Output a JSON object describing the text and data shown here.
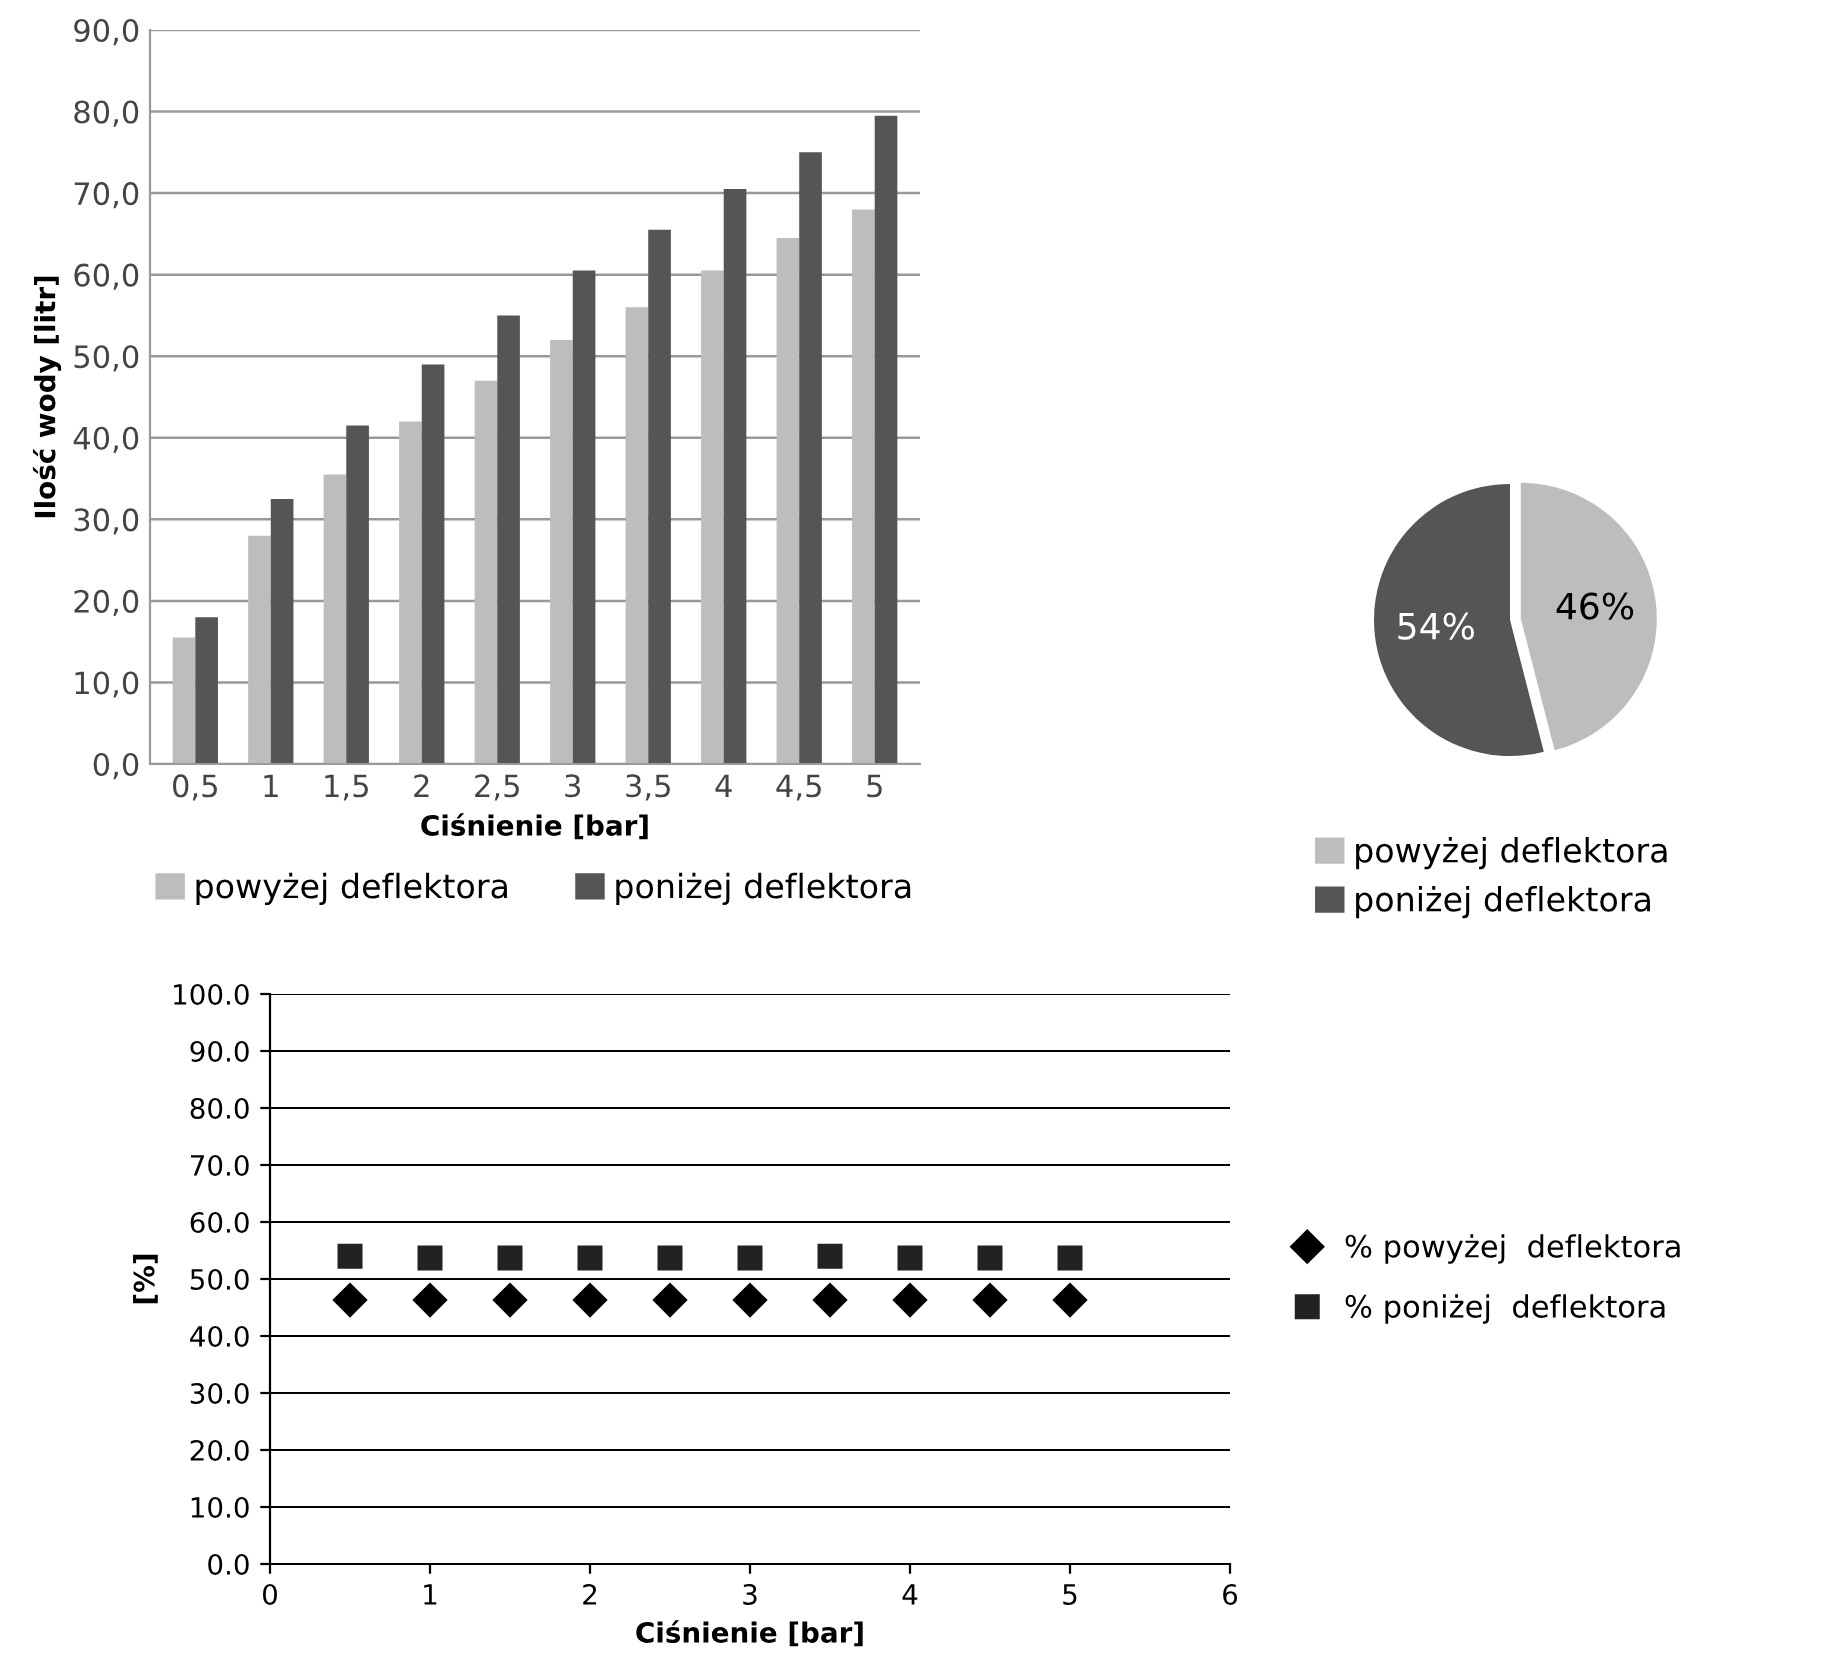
{
  "chart_data": [
    {
      "type": "bar",
      "xlabel": "Ciśnienie [bar]",
      "ylabel": "Ilość wody [litr]",
      "categories": [
        "0,5",
        "1",
        "1,5",
        "2",
        "2,5",
        "3",
        "3,5",
        "4",
        "4,5",
        "5"
      ],
      "series": [
        {
          "name": "powyżej deflektora",
          "color": "#bdbdbd",
          "values": [
            15.5,
            28,
            35.5,
            42,
            47,
            52,
            56,
            60.5,
            64.5,
            68
          ]
        },
        {
          "name": "poniżej deflektora",
          "color": "#555555",
          "values": [
            18,
            32.5,
            41.5,
            49,
            55,
            60.5,
            65.5,
            70.5,
            75,
            79.5
          ]
        }
      ],
      "ylim": [
        0,
        90
      ],
      "yticks": [
        {
          "value": 0,
          "label": "0,0"
        },
        {
          "value": 10,
          "label": "10,0"
        },
        {
          "value": 20,
          "label": "20,0"
        },
        {
          "value": 30,
          "label": "30,0"
        },
        {
          "value": 40,
          "label": "40,0"
        },
        {
          "value": 50,
          "label": "50,0"
        },
        {
          "value": 60,
          "label": "60,0"
        },
        {
          "value": 70,
          "label": "70,0"
        },
        {
          "value": 80,
          "label": "80,0"
        },
        {
          "value": 90,
          "label": "90,0"
        }
      ],
      "grid": "y",
      "legend": "bottom"
    },
    {
      "type": "pie",
      "categories": [
        "powyżej deflektora",
        "poniżej deflektora"
      ],
      "values": [
        46,
        54
      ],
      "colors": [
        "#bdbdbd",
        "#555555"
      ],
      "value_labels": [
        "46%",
        "54%"
      ],
      "legend": "bottom"
    },
    {
      "type": "scatter",
      "xlabel": "Ciśnienie [bar]",
      "ylabel": "[%]",
      "series": [
        {
          "name": "% powyżej  deflektora",
          "color": "#000000",
          "marker": "diamond",
          "x": [
            0.5,
            1,
            1.5,
            2,
            2.5,
            3,
            3.5,
            4,
            4.5,
            5
          ],
          "values": [
            46.3,
            46.3,
            46.3,
            46.3,
            46.3,
            46.3,
            46.3,
            46.3,
            46.3,
            46.3
          ]
        },
        {
          "name": "% poniżej  deflektora",
          "color": "#222222",
          "marker": "square",
          "x": [
            0.5,
            1,
            1.5,
            2,
            2.5,
            3,
            3.5,
            4,
            4.5,
            5
          ],
          "values": [
            54.0,
            53.7,
            53.7,
            53.7,
            53.7,
            53.7,
            54.0,
            53.7,
            53.7,
            53.7
          ]
        }
      ],
      "xlim": [
        0,
        6
      ],
      "xticks": [
        0,
        1,
        2,
        3,
        4,
        5,
        6
      ],
      "ylim": [
        0,
        100
      ],
      "yticks": [
        {
          "value": 0,
          "label": "0.0"
        },
        {
          "value": 10,
          "label": "10.0"
        },
        {
          "value": 20,
          "label": "20.0"
        },
        {
          "value": 30,
          "label": "30.0"
        },
        {
          "value": 40,
          "label": "40.0"
        },
        {
          "value": 50,
          "label": "50.0"
        },
        {
          "value": 60,
          "label": "60.0"
        },
        {
          "value": 70,
          "label": "70.0"
        },
        {
          "value": 80,
          "label": "80.0"
        },
        {
          "value": 90,
          "label": "90.0"
        },
        {
          "value": 100,
          "label": "100.0"
        }
      ],
      "grid": "y",
      "legend": "right"
    }
  ]
}
